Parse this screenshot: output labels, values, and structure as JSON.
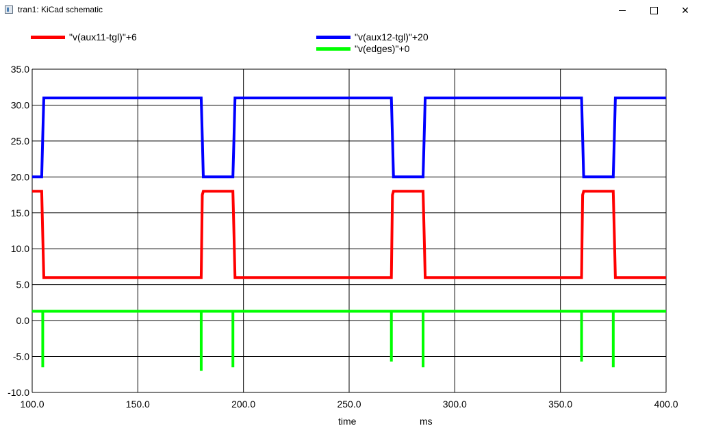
{
  "window": {
    "title": "tran1: KiCad schematic",
    "controls": [
      "minimize",
      "maximize",
      "close"
    ],
    "icon": "app-icon"
  },
  "chart_data": {
    "type": "line",
    "title": "",
    "xlabel": "time",
    "xunit": "ms",
    "ylabel": "",
    "xlim": [
      100,
      400
    ],
    "ylim": [
      -10,
      35
    ],
    "grid": true,
    "legend_position": "top",
    "x_ticks": [
      "100.0",
      "150.0",
      "200.0",
      "250.0",
      "300.0",
      "350.0",
      "400.0"
    ],
    "y_ticks": [
      "35.0",
      "30.0",
      "25.0",
      "20.0",
      "15.0",
      "10.0",
      "5.0",
      "0.0",
      "-5.0",
      "-10.0"
    ],
    "series": [
      {
        "name": "\"v(aux11-tgl)\"+6",
        "color": "#ff0000",
        "points": [
          [
            100,
            18
          ],
          [
            104.5,
            18
          ],
          [
            105,
            12
          ],
          [
            105.5,
            6
          ],
          [
            180,
            6
          ],
          [
            180.5,
            17.5
          ],
          [
            181,
            18
          ],
          [
            195,
            18
          ],
          [
            195.5,
            12
          ],
          [
            196,
            6
          ],
          [
            270,
            6
          ],
          [
            270.5,
            17.5
          ],
          [
            271,
            18
          ],
          [
            285,
            18
          ],
          [
            285.5,
            12
          ],
          [
            286,
            6
          ],
          [
            360,
            6
          ],
          [
            360.5,
            17.5
          ],
          [
            361,
            18
          ],
          [
            375,
            18
          ],
          [
            375.5,
            12
          ],
          [
            376,
            6
          ],
          [
            400,
            6
          ]
        ]
      },
      {
        "name": "\"v(aux12-tgl)\"+20",
        "color": "#0000ff",
        "points": [
          [
            100,
            20
          ],
          [
            104.5,
            20
          ],
          [
            105,
            25.5
          ],
          [
            105.5,
            31
          ],
          [
            180,
            31
          ],
          [
            180.5,
            25.5
          ],
          [
            181,
            20
          ],
          [
            195,
            20
          ],
          [
            195.5,
            25.5
          ],
          [
            196,
            31
          ],
          [
            270,
            31
          ],
          [
            270.5,
            25.5
          ],
          [
            271,
            20
          ],
          [
            285,
            20
          ],
          [
            285.5,
            25.5
          ],
          [
            286,
            31
          ],
          [
            360,
            31
          ],
          [
            360.5,
            25.5
          ],
          [
            361,
            20
          ],
          [
            375,
            20
          ],
          [
            375.5,
            25.5
          ],
          [
            376,
            31
          ],
          [
            400,
            31
          ]
        ]
      },
      {
        "name": "\"v(edges)\"+0",
        "color": "#00ff00",
        "baseline": 1.3,
        "spikes": [
          [
            105,
            -6.5
          ],
          [
            180,
            -7
          ],
          [
            195,
            -6.5
          ],
          [
            270,
            -5.7
          ],
          [
            285,
            -6.5
          ],
          [
            360,
            -5.7
          ],
          [
            375,
            -6.5
          ]
        ]
      }
    ]
  }
}
